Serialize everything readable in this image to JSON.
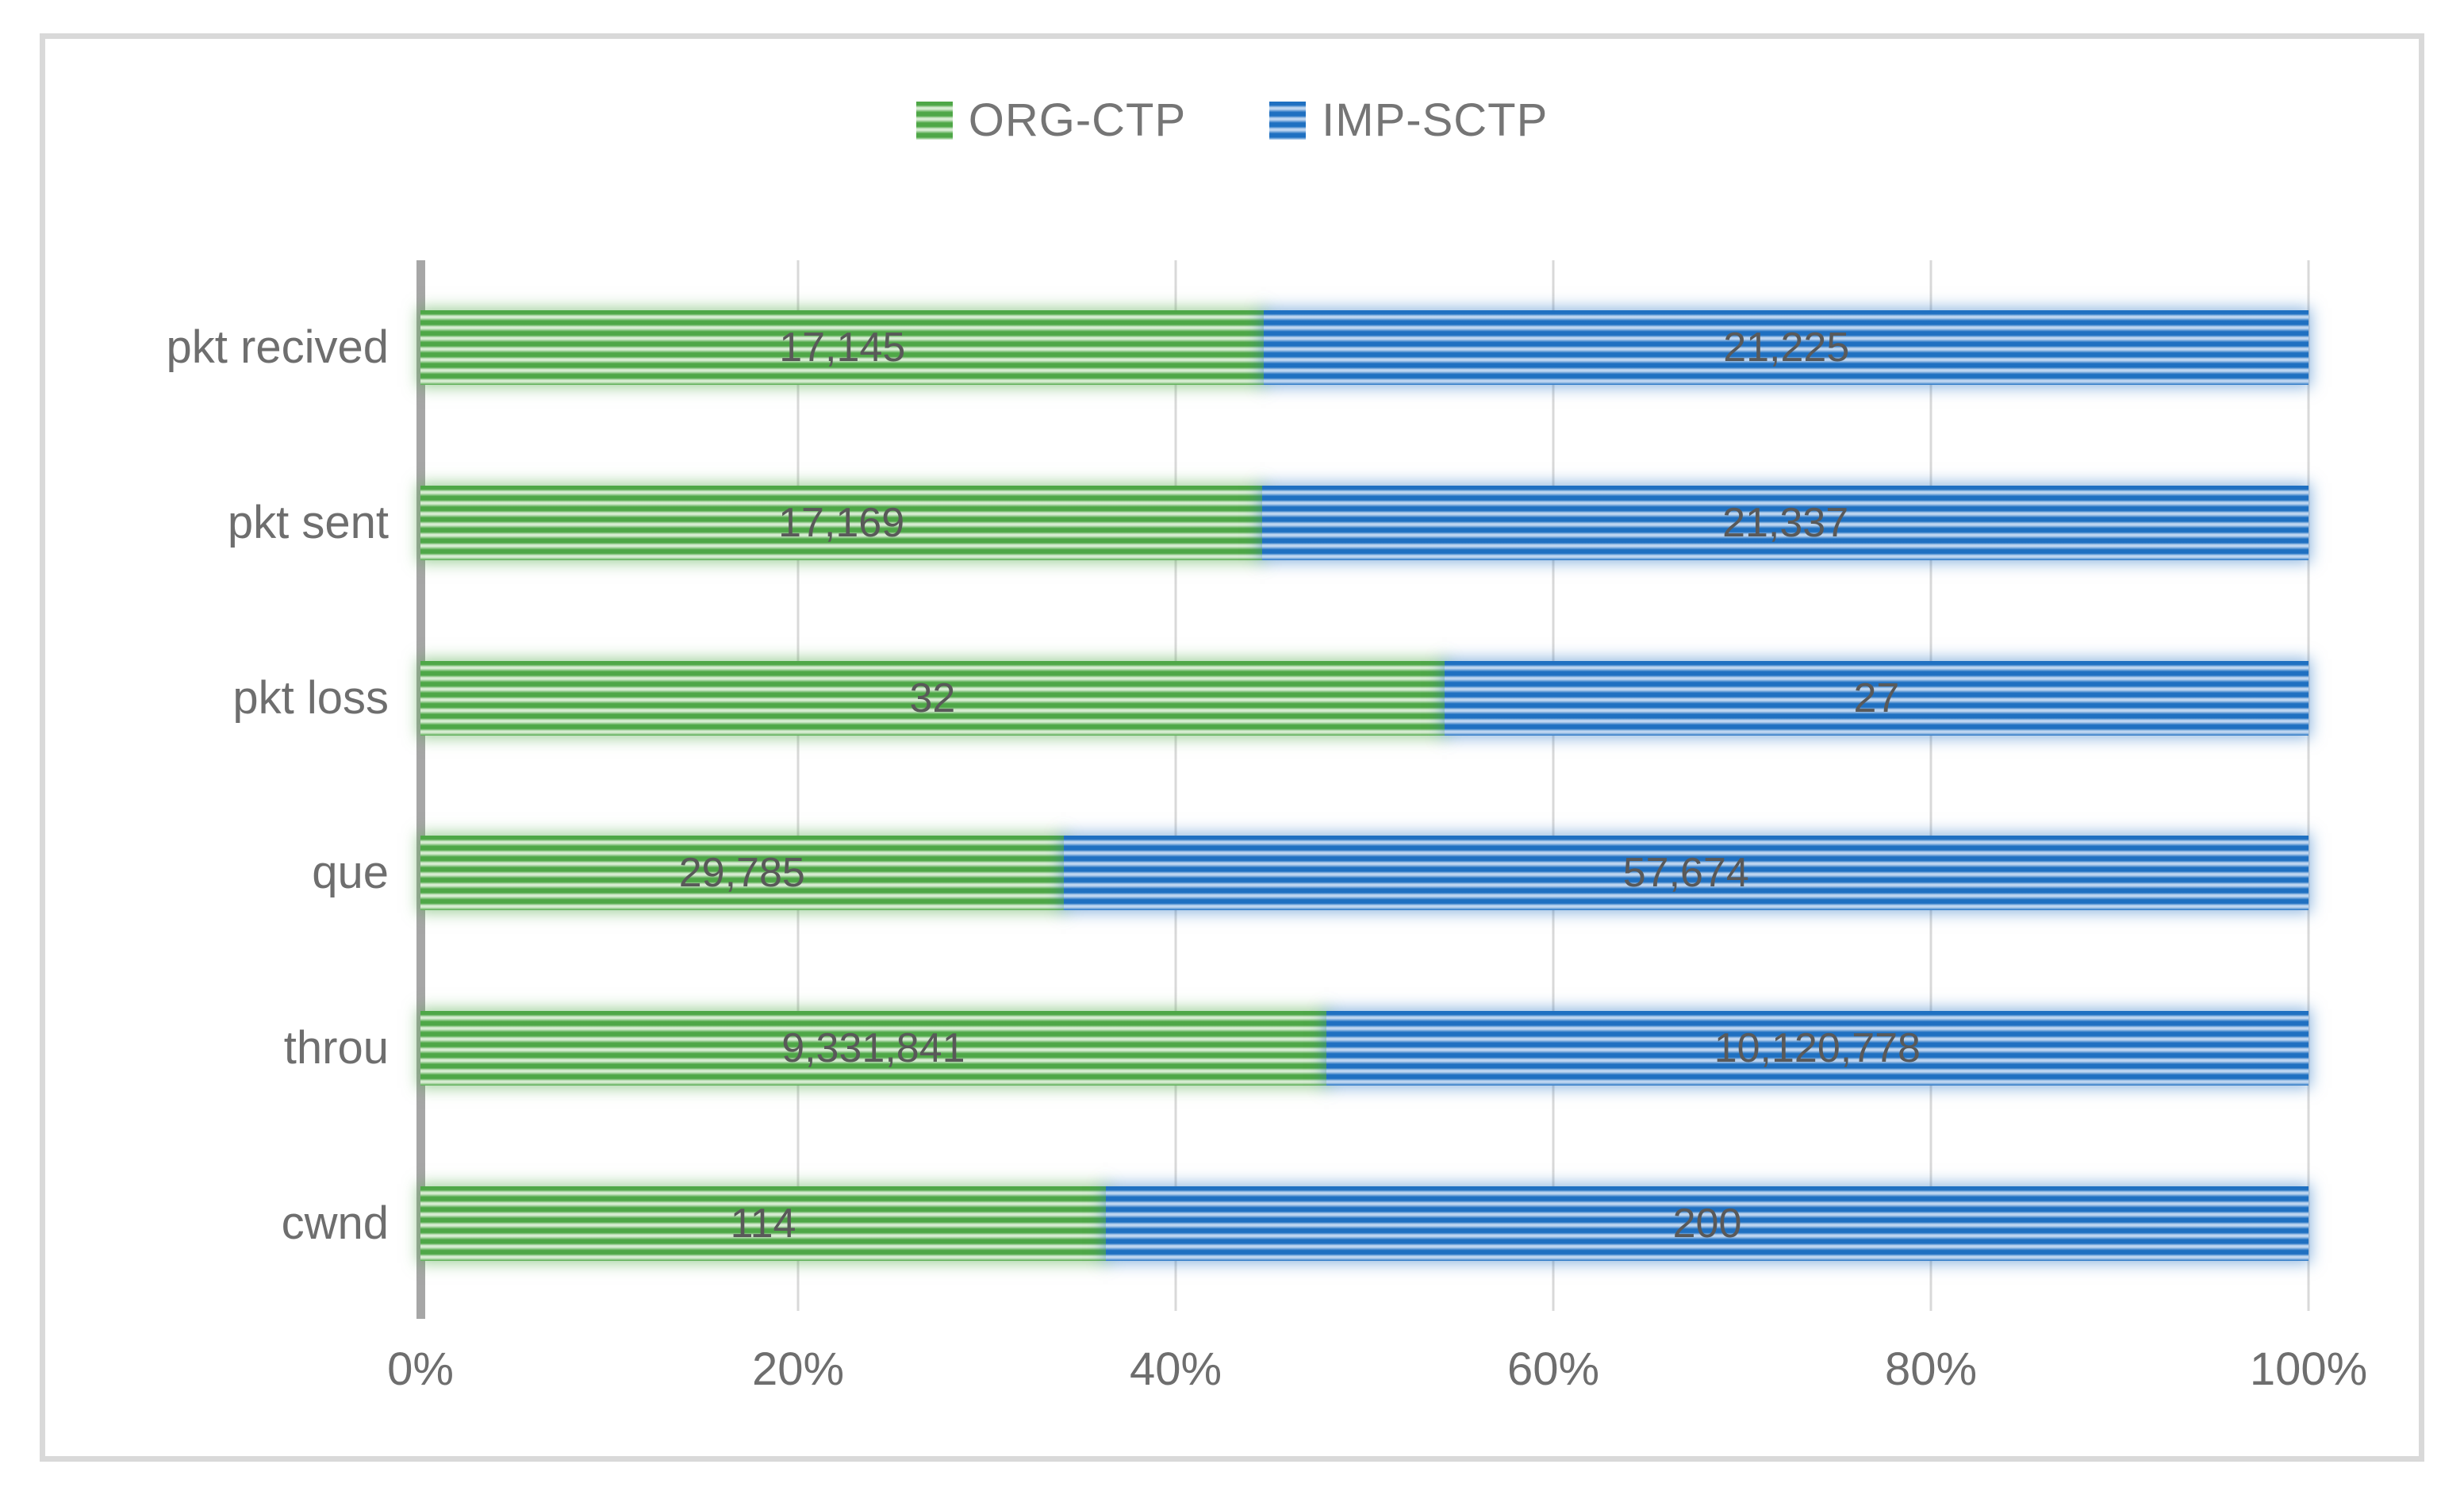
{
  "chart_data": {
    "type": "bar",
    "variant": "horizontal-100pct-stacked",
    "title": "",
    "categories": [
      "pkt recived",
      "pkt sent",
      "pkt loss",
      "que",
      "throu",
      "cwnd"
    ],
    "series": [
      {
        "name": "ORG-CTP",
        "color": "#4ea747",
        "pattern": "light-horizontal-stripes",
        "values": [
          17145,
          17169,
          32,
          29785,
          9331841,
          114
        ],
        "labels": [
          "17,145",
          "17,169",
          "32",
          "29,785",
          "9,331,841",
          "114"
        ]
      },
      {
        "name": "IMP-SCTP",
        "color": "#1f70c1",
        "pattern": "light-horizontal-stripes",
        "values": [
          21225,
          21337,
          27,
          57674,
          10120778,
          200
        ],
        "labels": [
          "21,225",
          "21,337",
          "27",
          "57,674",
          "10,120,778",
          "200"
        ]
      }
    ],
    "x_axis": {
      "ticks": [
        "0%",
        "20%",
        "40%",
        "60%",
        "80%",
        "100%"
      ],
      "range": [
        0,
        100
      ],
      "unit": "percent"
    },
    "legend": {
      "position": "top-center",
      "entries": [
        "ORG-CTP",
        "IMP-SCTP"
      ]
    },
    "grid": true,
    "colors": {
      "grid_line": "#d9d9d9",
      "axis_line": "#a6a6a6",
      "frame_border": "#d9d9d9",
      "data_label_text": "#595959",
      "axis_text": "#6e6e6e",
      "legend_text": "#757575",
      "green_stripe_light": "#d6ecd1",
      "blue_stripe_light": "#bdd5f0"
    }
  }
}
